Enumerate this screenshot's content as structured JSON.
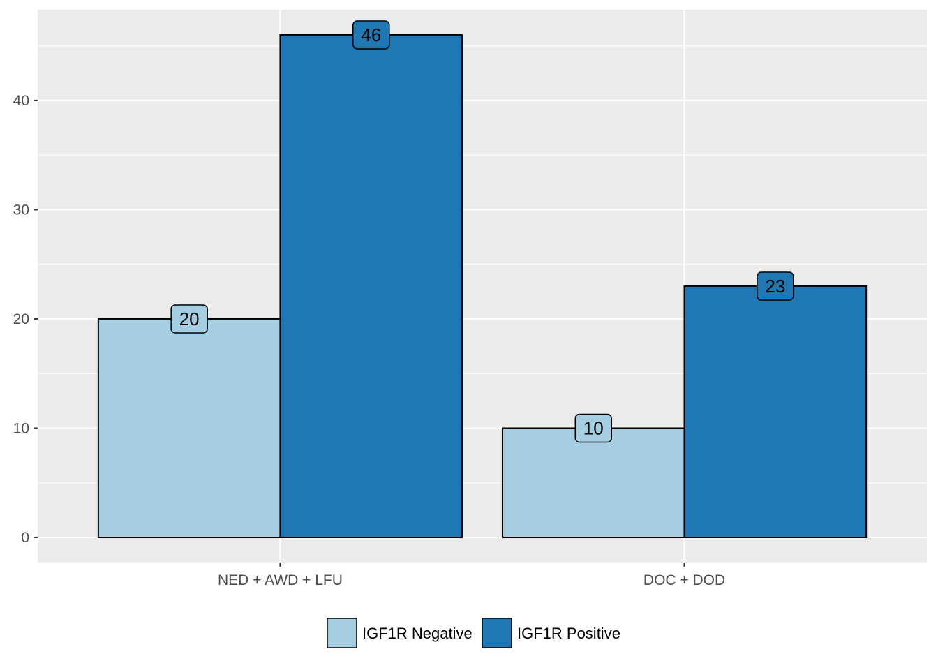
{
  "chart_data": {
    "type": "bar",
    "categories": [
      "NED + AWD + LFU",
      "DOC + DOD"
    ],
    "series": [
      {
        "name": "IGF1R Negative",
        "values": [
          20,
          10
        ],
        "color": "#a6cee3"
      },
      {
        "name": "IGF1R Positive",
        "values": [
          46,
          23
        ],
        "color": "#1f78b4"
      }
    ],
    "title": "",
    "xlabel": "",
    "ylabel": "",
    "ylim": [
      -2.3,
      48.3
    ],
    "yticks": [
      0,
      10,
      20,
      30,
      40
    ],
    "grid": true,
    "legend_position": "bottom",
    "panel_background": "#ebebeb",
    "grid_color": "#ffffff",
    "data_labels": true
  }
}
